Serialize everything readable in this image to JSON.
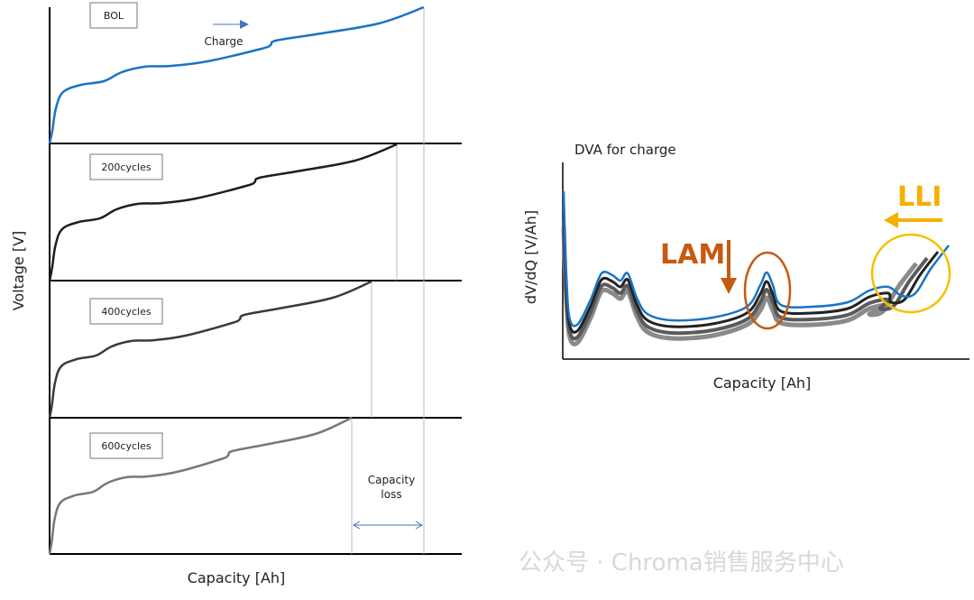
{
  "left": {
    "y_label": "Voltage [V]",
    "x_label": "Capacity [Ah]",
    "panels": [
      {
        "label": "BOL",
        "annotation": "Charge"
      },
      {
        "label": "200cycles"
      },
      {
        "label": "400cycles"
      },
      {
        "label": "600cycles"
      }
    ],
    "capacity_loss": "Capacity loss"
  },
  "right": {
    "title": "DVA for charge",
    "y_label": "dV/dQ [V/Ah]",
    "x_label": "Capacity [Ah]",
    "lam": "LAM",
    "lli": "LLI"
  },
  "watermark": "公众号 · Chroma销售服务中心"
}
